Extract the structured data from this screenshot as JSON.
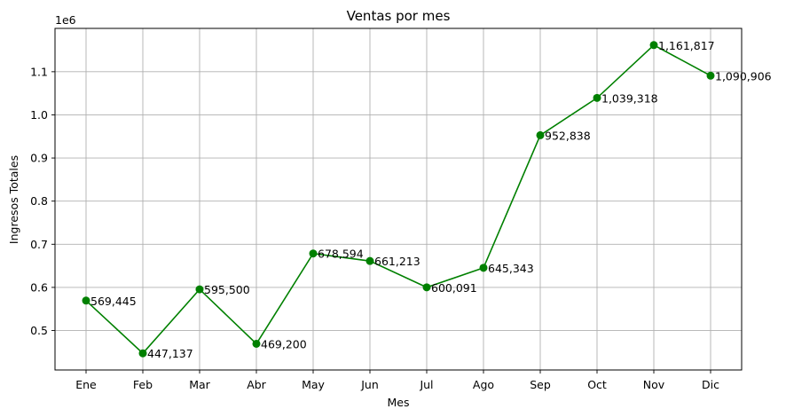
{
  "chart_data": {
    "type": "line",
    "title": "Ventas por mes",
    "xlabel": "Mes",
    "ylabel": "Ingresos Totales",
    "y_offset_label": "1e6",
    "categories": [
      "Ene",
      "Feb",
      "Mar",
      "Abr",
      "May",
      "Jun",
      "Jul",
      "Ago",
      "Sep",
      "Oct",
      "Nov",
      "Dic"
    ],
    "series": [
      {
        "values": [
          569445,
          447137,
          595500,
          469200,
          678594,
          661213,
          600091,
          645343,
          952838,
          1039318,
          1161817,
          1090906
        ],
        "data_labels": [
          "569,445",
          "447,137",
          "595,500",
          "469,200",
          "678,594",
          "661,213",
          "600,091",
          "645,343",
          "952,838",
          "1,039,318",
          "1,161,817",
          "1,090,906"
        ],
        "color": "#008000",
        "marker": "circle"
      }
    ],
    "y_ticks": [
      0.5,
      0.6,
      0.7,
      0.8,
      0.9,
      1.0,
      1.1
    ],
    "y_tick_labels": [
      "0.5",
      "0.6",
      "0.7",
      "0.8",
      "0.9",
      "1.0",
      "1.1"
    ],
    "ylim": [
      0.4085,
      1.2005
    ],
    "y_scale": 1000000,
    "grid": true,
    "legend": "none"
  }
}
